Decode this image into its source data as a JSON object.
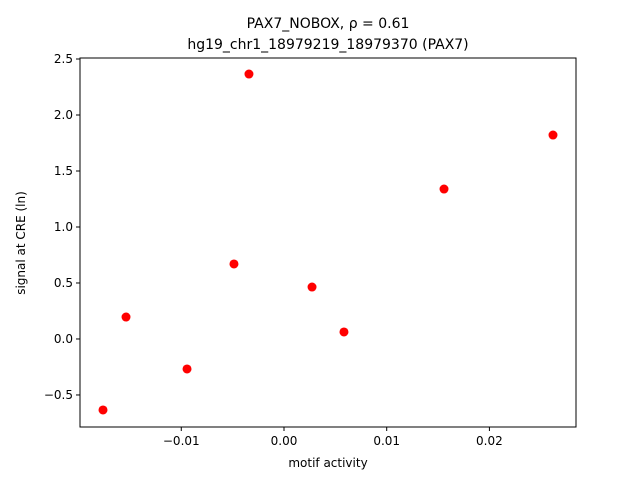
{
  "chart_data": {
    "type": "scatter",
    "title": "PAX7_NOBOX, ρ = 0.61",
    "subtitle": "hg19_chr1_18979219_18979370 (PAX7)",
    "x_label": "motif activity",
    "y_label": "signal at CRE (ln)",
    "color": "#ff0000",
    "x": [
      -0.01762,
      -0.01538,
      -0.00944,
      -0.00487,
      -0.00341,
      0.00273,
      0.00584,
      0.01558,
      0.02619
    ],
    "values": [
      -0.634,
      0.196,
      -0.268,
      0.67,
      2.366,
      0.464,
      0.0625,
      1.339,
      1.821
    ],
    "xlim": [
      -0.01986,
      0.02843
    ],
    "ylim": [
      -0.786,
      2.509
    ],
    "xticks": [
      {
        "value": -0.01,
        "label": "−0.01"
      },
      {
        "value": 0,
        "label": "0.00"
      },
      0.01,
      0.02
    ],
    "yticks": [
      {
        "value": -0.5,
        "label": "−0.5"
      },
      {
        "value": 0,
        "label": "0.0"
      },
      0.5,
      {
        "value": 1,
        "label": "1.0"
      },
      1.5,
      {
        "value": 2,
        "label": "2.0"
      },
      2.5
    ]
  }
}
